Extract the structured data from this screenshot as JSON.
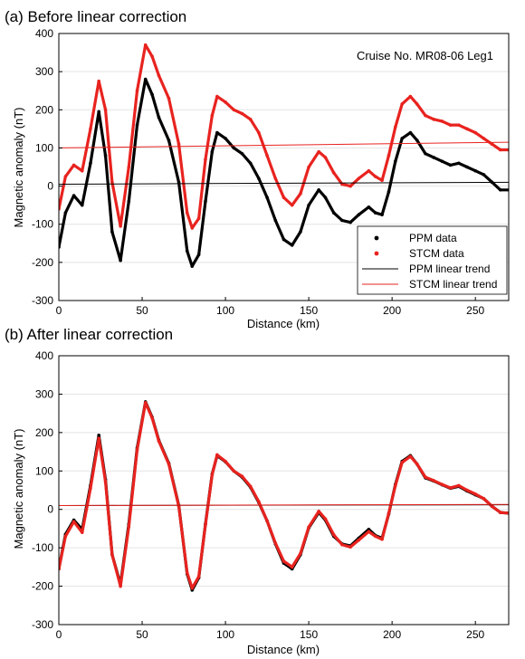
{
  "chart_data": [
    {
      "type": "line",
      "title": "(a) Before linear correction",
      "xlabel": "Distance (km)",
      "ylabel": "Magnetic anomaly (nT)",
      "xlim": [
        0,
        270
      ],
      "ylim": [
        -300,
        400
      ],
      "xticks": [
        0,
        50,
        100,
        150,
        200,
        250
      ],
      "yticks": [
        -300,
        -200,
        -100,
        0,
        100,
        200,
        300,
        400
      ],
      "grid": "horizontal",
      "annotation": "Cruise No. MR08-06 Leg1",
      "legend_position": "bottom-right",
      "series": [
        {
          "name": "PPM data",
          "style": "dots",
          "color": "#000000",
          "x": [
            0,
            4,
            9,
            14,
            19,
            24,
            28,
            32,
            37,
            42,
            47,
            52,
            56,
            60,
            66,
            72,
            77,
            80,
            84,
            88,
            92,
            95,
            100,
            105,
            110,
            115,
            120,
            125,
            130,
            135,
            140,
            145,
            150,
            156,
            160,
            165,
            170,
            175,
            180,
            186,
            190,
            194,
            198,
            202,
            206,
            211,
            215,
            220,
            225,
            230,
            235,
            240,
            245,
            250,
            255,
            260,
            265,
            270
          ],
          "y": [
            -160,
            -70,
            -25,
            -50,
            60,
            195,
            80,
            -120,
            -195,
            -40,
            160,
            280,
            240,
            180,
            120,
            10,
            -170,
            -210,
            -180,
            -40,
            90,
            140,
            125,
            100,
            85,
            60,
            20,
            -30,
            -90,
            -140,
            -155,
            -120,
            -50,
            -10,
            -30,
            -70,
            -90,
            -95,
            -75,
            -55,
            -70,
            -75,
            -15,
            65,
            125,
            140,
            120,
            85,
            75,
            65,
            55,
            60,
            50,
            40,
            30,
            10,
            -10,
            -10
          ]
        },
        {
          "name": "STCM data",
          "style": "dots",
          "color": "#e8231f",
          "x": [
            0,
            4,
            9,
            14,
            19,
            24,
            28,
            32,
            37,
            42,
            47,
            52,
            56,
            60,
            66,
            72,
            77,
            80,
            84,
            88,
            92,
            95,
            100,
            105,
            110,
            115,
            120,
            125,
            130,
            135,
            140,
            145,
            150,
            156,
            160,
            165,
            170,
            175,
            180,
            186,
            190,
            194,
            198,
            202,
            206,
            211,
            215,
            220,
            225,
            230,
            235,
            240,
            245,
            250,
            255,
            260,
            265,
            270
          ],
          "y": [
            -60,
            25,
            55,
            40,
            150,
            275,
            200,
            10,
            -105,
            50,
            250,
            370,
            340,
            290,
            230,
            110,
            -70,
            -110,
            -85,
            70,
            185,
            235,
            220,
            200,
            190,
            175,
            140,
            80,
            20,
            -30,
            -50,
            -20,
            50,
            90,
            75,
            35,
            5,
            0,
            20,
            40,
            25,
            15,
            80,
            155,
            215,
            235,
            215,
            185,
            175,
            170,
            160,
            160,
            150,
            140,
            125,
            110,
            95,
            95
          ]
        },
        {
          "name": "PPM linear trend",
          "style": "line",
          "color": "#000000",
          "x": [
            0,
            270
          ],
          "y": [
            5,
            10
          ]
        },
        {
          "name": "STCM linear trend",
          "style": "line",
          "color": "#e8231f",
          "x": [
            0,
            270
          ],
          "y": [
            100,
            115
          ]
        }
      ]
    },
    {
      "type": "line",
      "title": "(b) After linear correction",
      "xlabel": "Distance (km)",
      "ylabel": "Magnetic anomaly (nT)",
      "xlim": [
        0,
        270
      ],
      "ylim": [
        -300,
        400
      ],
      "xticks": [
        0,
        50,
        100,
        150,
        200,
        250
      ],
      "yticks": [
        -300,
        -200,
        -100,
        0,
        100,
        200,
        300,
        400
      ],
      "grid": "horizontal",
      "series": [
        {
          "style": "dots",
          "color": "#000000",
          "x": [
            0,
            4,
            9,
            14,
            19,
            24,
            28,
            32,
            37,
            42,
            47,
            52,
            56,
            60,
            66,
            72,
            77,
            80,
            84,
            88,
            92,
            95,
            100,
            105,
            110,
            115,
            120,
            125,
            130,
            135,
            140,
            145,
            150,
            156,
            160,
            165,
            170,
            175,
            180,
            186,
            190,
            194,
            198,
            202,
            206,
            211,
            215,
            220,
            225,
            230,
            235,
            240,
            245,
            250,
            255,
            260,
            265,
            270
          ],
          "y": [
            -155,
            -65,
            -28,
            -52,
            62,
            193,
            78,
            -118,
            -195,
            -38,
            160,
            280,
            240,
            180,
            120,
            10,
            -168,
            -210,
            -178,
            -38,
            92,
            140,
            124,
            100,
            84,
            58,
            18,
            -30,
            -90,
            -140,
            -155,
            -118,
            -48,
            -8,
            -28,
            -70,
            -90,
            -95,
            -75,
            -52,
            -68,
            -75,
            -12,
            65,
            125,
            140,
            118,
            82,
            74,
            64,
            55,
            60,
            48,
            38,
            28,
            8,
            -8,
            -10
          ]
        },
        {
          "style": "dots",
          "color": "#e8231f",
          "x": [
            0,
            4,
            9,
            14,
            19,
            24,
            28,
            32,
            37,
            42,
            47,
            52,
            56,
            60,
            66,
            72,
            77,
            80,
            84,
            88,
            92,
            95,
            100,
            105,
            110,
            115,
            120,
            125,
            130,
            135,
            140,
            145,
            150,
            156,
            160,
            165,
            170,
            175,
            180,
            186,
            190,
            194,
            198,
            202,
            206,
            211,
            215,
            220,
            225,
            230,
            235,
            240,
            245,
            250,
            255,
            260,
            265,
            270
          ],
          "y": [
            -155,
            -70,
            -32,
            -60,
            55,
            185,
            72,
            -118,
            -200,
            -45,
            155,
            278,
            238,
            178,
            118,
            8,
            -165,
            -205,
            -175,
            -40,
            90,
            142,
            125,
            100,
            86,
            60,
            20,
            -30,
            -88,
            -135,
            -150,
            -115,
            -46,
            -5,
            -25,
            -66,
            -92,
            -98,
            -80,
            -58,
            -70,
            -78,
            -10,
            62,
            122,
            138,
            118,
            84,
            75,
            65,
            56,
            62,
            50,
            40,
            28,
            8,
            -8,
            -10
          ]
        },
        {
          "style": "line",
          "color": "#000000",
          "x": [
            0,
            270
          ],
          "y": [
            10,
            12
          ]
        },
        {
          "style": "line",
          "color": "#e8231f",
          "x": [
            0,
            270
          ],
          "y": [
            10,
            13
          ]
        }
      ]
    }
  ]
}
